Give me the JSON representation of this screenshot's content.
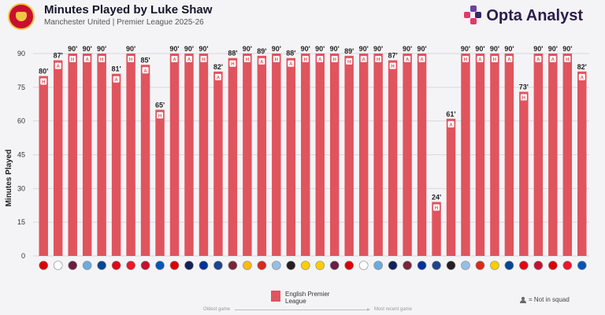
{
  "header": {
    "title": "Minutes Played by Luke Shaw",
    "subtitle": "Manchester United | Premier League 2025-26",
    "brand": "Opta Analyst"
  },
  "legend": {
    "label": "English Premier League",
    "squad_note": "= Not in squad",
    "oldest": "Oldest game",
    "recent": "Most recent game"
  },
  "chart_data": {
    "type": "bar",
    "title": "Minutes Played by Luke Shaw",
    "ylabel": "Minutes Played",
    "ylim": [
      0,
      90
    ],
    "yticks": [
      0,
      15,
      30,
      45,
      60,
      75,
      90
    ],
    "grid": true,
    "bar_color": "#e0545e",
    "value_suffix": "'",
    "venue_labels": {
      "H": "H",
      "A": "A"
    },
    "values": [
      80,
      87,
      90,
      90,
      90,
      81,
      90,
      85,
      65,
      90,
      90,
      90,
      82,
      88,
      90,
      89,
      90,
      88,
      90,
      90,
      90,
      89,
      90,
      90,
      87,
      90,
      90,
      24,
      61,
      90,
      90,
      90,
      90,
      73,
      90,
      90,
      90,
      82
    ],
    "venues": [
      "H",
      "A",
      "H",
      "A",
      "H",
      "A",
      "H",
      "A",
      "H",
      "A",
      "A",
      "H",
      "A",
      "H",
      "H",
      "A",
      "H",
      "A",
      "H",
      "A",
      "H",
      "H",
      "A",
      "H",
      "H",
      "A",
      "A",
      "H",
      "A",
      "H",
      "A",
      "H",
      "A",
      "H",
      "A",
      "A",
      "H",
      "A"
    ],
    "opponent_icons": [
      "arsenal-crest-icon",
      "fulham-crest-icon",
      "burnley-crest-icon",
      "man-city-crest-icon",
      "chelsea-crest-icon",
      "brentford-crest-icon",
      "sunderland-crest-icon",
      "liverpool-crest-icon",
      "brighton-crest-icon",
      "forest-crest-icon",
      "tottenham-crest-icon",
      "everton-crest-icon",
      "palace-crest-icon",
      "west-ham-crest-icon",
      "wolves-crest-icon",
      "bournemouth-crest-icon",
      "aston-villa-crest-icon",
      "newcastle-crest-icon",
      "leeds-crest-icon",
      "leeds-crest-icon",
      "burnley-crest-icon",
      "arsenal-crest-icon",
      "fulham-crest-icon",
      "man-city-crest-icon",
      "tottenham-crest-icon",
      "west-ham-crest-icon",
      "everton-crest-icon",
      "palace-crest-icon",
      "newcastle-crest-icon",
      "aston-villa-crest-icon",
      "bournemouth-crest-icon",
      "leeds-crest-icon",
      "chelsea-crest-icon",
      "brentford-crest-icon",
      "liverpool-crest-icon",
      "forest-crest-icon",
      "sunderland-crest-icon",
      "brighton-crest-icon"
    ],
    "opponent_colors": [
      "#db0007",
      "#ffffff",
      "#6c1d45",
      "#6cabdd",
      "#034694",
      "#e30613",
      "#eb172b",
      "#c8102e",
      "#0057b8",
      "#dd0000",
      "#132257",
      "#003399",
      "#1b458f",
      "#7a263a",
      "#fdb913",
      "#da291c",
      "#95bfe5",
      "#241f20",
      "#ffcd00",
      "#ffcd00",
      "#6c1d45",
      "#db0007",
      "#ffffff",
      "#6cabdd",
      "#132257",
      "#7a263a",
      "#003399",
      "#1b458f",
      "#241f20",
      "#95bfe5",
      "#da291c",
      "#ffcd00",
      "#034694",
      "#e30613",
      "#c8102e",
      "#dd0000",
      "#eb172b",
      "#0057b8"
    ]
  },
  "colors": {
    "accent": "#e0545e",
    "brand_pink": "#e8376d",
    "brand_purple": "#6f3fa0"
  }
}
